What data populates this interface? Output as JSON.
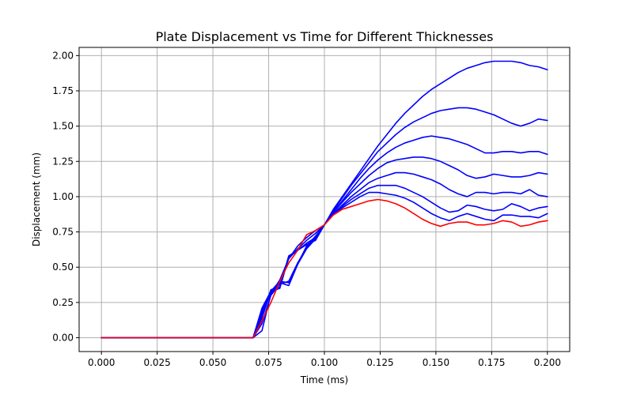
{
  "chart_data": {
    "type": "line",
    "title": "Plate Displacement vs Time for Different Thicknesses",
    "xlabel": "Time (ms)",
    "ylabel": "Displacement (mm)",
    "xlim": [
      -0.01,
      0.21
    ],
    "ylim": [
      -0.098,
      2.058
    ],
    "grid": true,
    "x_ticks": [
      0.0,
      0.025,
      0.05,
      0.075,
      0.1,
      0.125,
      0.15,
      0.175,
      0.2
    ],
    "x_tick_labels": [
      "0.000",
      "0.025",
      "0.050",
      "0.075",
      "0.100",
      "0.125",
      "0.150",
      "0.175",
      "0.200"
    ],
    "y_ticks": [
      0.0,
      0.25,
      0.5,
      0.75,
      1.0,
      1.25,
      1.5,
      1.75,
      2.0
    ],
    "y_tick_labels": [
      "0.00",
      "0.25",
      "0.50",
      "0.75",
      "1.00",
      "1.25",
      "1.50",
      "1.75",
      "2.00"
    ],
    "x": [
      0.0,
      0.068,
      0.072,
      0.076,
      0.08,
      0.084,
      0.088,
      0.092,
      0.096,
      0.1,
      0.104,
      0.108,
      0.112,
      0.116,
      0.12,
      0.124,
      0.128,
      0.132,
      0.136,
      0.14,
      0.144,
      0.148,
      0.152,
      0.156,
      0.16,
      0.164,
      0.168,
      0.172,
      0.176,
      0.18,
      0.184,
      0.188,
      0.192,
      0.196,
      0.2
    ],
    "series": [
      {
        "color": "#0000ff",
        "values": [
          0.0,
          0.0,
          0.21,
          0.33,
          0.4,
          0.39,
          0.52,
          0.65,
          0.72,
          0.8,
          0.91,
          1.0,
          1.09,
          1.18,
          1.27,
          1.36,
          1.44,
          1.52,
          1.59,
          1.65,
          1.71,
          1.76,
          1.8,
          1.84,
          1.88,
          1.91,
          1.93,
          1.95,
          1.96,
          1.96,
          1.96,
          1.95,
          1.93,
          1.92,
          1.9
        ]
      },
      {
        "color": "#0000ff",
        "values": [
          0.0,
          0.0,
          0.19,
          0.33,
          0.38,
          0.4,
          0.53,
          0.64,
          0.71,
          0.8,
          0.9,
          0.99,
          1.08,
          1.16,
          1.24,
          1.32,
          1.38,
          1.44,
          1.49,
          1.53,
          1.56,
          1.59,
          1.61,
          1.62,
          1.63,
          1.63,
          1.62,
          1.6,
          1.58,
          1.55,
          1.52,
          1.5,
          1.52,
          1.55,
          1.54
        ]
      },
      {
        "color": "#0000ff",
        "values": [
          0.0,
          0.0,
          0.18,
          0.32,
          0.39,
          0.37,
          0.52,
          0.63,
          0.7,
          0.8,
          0.89,
          0.97,
          1.05,
          1.13,
          1.2,
          1.26,
          1.31,
          1.35,
          1.38,
          1.4,
          1.42,
          1.43,
          1.42,
          1.41,
          1.39,
          1.37,
          1.34,
          1.31,
          1.31,
          1.32,
          1.32,
          1.31,
          1.32,
          1.32,
          1.3
        ]
      },
      {
        "color": "#0000ff",
        "values": [
          0.0,
          0.0,
          0.16,
          0.34,
          0.36,
          0.58,
          0.62,
          0.66,
          0.69,
          0.8,
          0.89,
          0.96,
          1.03,
          1.09,
          1.15,
          1.2,
          1.24,
          1.26,
          1.27,
          1.28,
          1.28,
          1.27,
          1.25,
          1.22,
          1.19,
          1.15,
          1.13,
          1.14,
          1.16,
          1.15,
          1.14,
          1.14,
          1.15,
          1.17,
          1.16
        ]
      },
      {
        "color": "#0000ff",
        "values": [
          0.0,
          0.0,
          0.14,
          0.33,
          0.35,
          0.57,
          0.62,
          0.67,
          0.71,
          0.8,
          0.88,
          0.94,
          1.0,
          1.05,
          1.1,
          1.13,
          1.15,
          1.17,
          1.17,
          1.16,
          1.14,
          1.12,
          1.09,
          1.05,
          1.02,
          1.0,
          1.03,
          1.03,
          1.02,
          1.03,
          1.03,
          1.02,
          1.05,
          1.01,
          1.0
        ]
      },
      {
        "color": "#0000ff",
        "values": [
          0.0,
          0.0,
          0.1,
          0.3,
          0.38,
          0.56,
          0.63,
          0.69,
          0.74,
          0.8,
          0.88,
          0.93,
          0.98,
          1.02,
          1.06,
          1.08,
          1.08,
          1.08,
          1.06,
          1.03,
          1.0,
          0.96,
          0.92,
          0.89,
          0.9,
          0.94,
          0.93,
          0.91,
          0.9,
          0.91,
          0.95,
          0.93,
          0.9,
          0.92,
          0.93
        ]
      },
      {
        "color": "#0000ff",
        "values": [
          0.0,
          0.0,
          0.05,
          0.31,
          0.41,
          0.56,
          0.65,
          0.71,
          0.76,
          0.8,
          0.88,
          0.92,
          0.96,
          1.0,
          1.03,
          1.03,
          1.02,
          1.01,
          0.99,
          0.96,
          0.92,
          0.88,
          0.85,
          0.83,
          0.86,
          0.88,
          0.86,
          0.84,
          0.83,
          0.87,
          0.87,
          0.86,
          0.86,
          0.85,
          0.88
        ]
      },
      {
        "color": "#ff0000",
        "values": [
          0.0,
          0.0,
          0.12,
          0.25,
          0.4,
          0.53,
          0.62,
          0.73,
          0.76,
          0.8,
          0.87,
          0.91,
          0.93,
          0.95,
          0.97,
          0.98,
          0.97,
          0.95,
          0.92,
          0.88,
          0.84,
          0.81,
          0.79,
          0.81,
          0.82,
          0.82,
          0.8,
          0.8,
          0.81,
          0.83,
          0.82,
          0.79,
          0.8,
          0.82,
          0.83
        ]
      }
    ]
  }
}
